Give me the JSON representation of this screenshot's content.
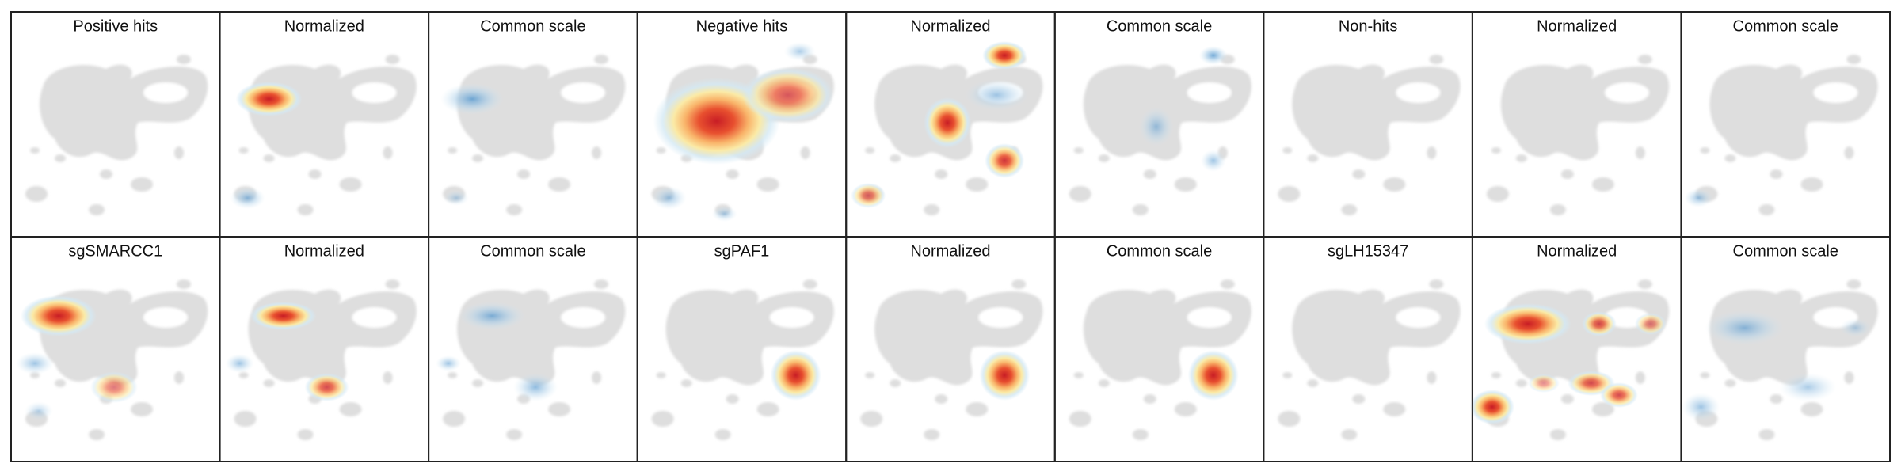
{
  "grid": {
    "rows": [
      [
        "Positive hits",
        "Normalized",
        "Common scale",
        "Negative hits",
        "Normalized",
        "Common scale",
        "Non-hits",
        "Normalized",
        "Common scale"
      ],
      [
        "sgSMARCC1",
        "Normalized",
        "Common scale",
        "sgPAF1",
        "Normalized",
        "Common scale",
        "sgLH15347",
        "Normalized",
        "Common scale"
      ]
    ]
  }
}
